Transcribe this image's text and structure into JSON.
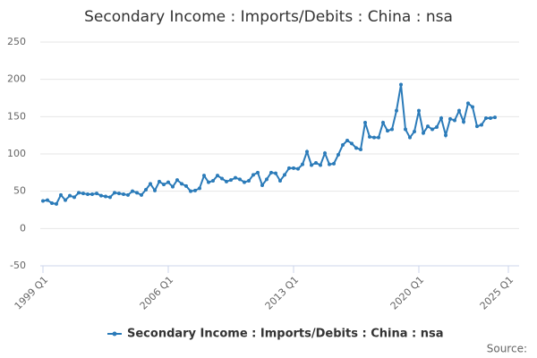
{
  "chart_data": {
    "type": "line",
    "title": "Secondary Income : Imports/Debits : China : nsa",
    "source": "Source:",
    "x": [
      1999,
      1999.25,
      1999.5,
      1999.75,
      2000,
      2000.25,
      2000.5,
      2000.75,
      2001,
      2001.25,
      2001.5,
      2001.75,
      2002,
      2002.25,
      2002.5,
      2002.75,
      2003,
      2003.25,
      2003.5,
      2003.75,
      2004,
      2004.25,
      2004.5,
      2004.75,
      2005,
      2005.25,
      2005.5,
      2005.75,
      2006,
      2006.25,
      2006.5,
      2006.75,
      2007,
      2007.25,
      2007.5,
      2007.75,
      2008,
      2008.25,
      2008.5,
      2008.75,
      2009,
      2009.25,
      2009.5,
      2009.75,
      2010,
      2010.25,
      2010.5,
      2010.75,
      2011,
      2011.25,
      2011.5,
      2011.75,
      2012,
      2012.25,
      2012.5,
      2012.75,
      2013,
      2013.25,
      2013.5,
      2013.75,
      2014,
      2014.25,
      2014.5,
      2014.75,
      2015,
      2015.25,
      2015.5,
      2015.75,
      2016,
      2016.25,
      2016.5,
      2016.75,
      2017,
      2017.25,
      2017.5,
      2017.75,
      2018,
      2018.25,
      2018.5,
      2018.75,
      2019,
      2019.25,
      2019.5,
      2019.75,
      2020,
      2020.25,
      2020.5,
      2020.75,
      2021,
      2021.25,
      2021.5,
      2021.75,
      2022,
      2022.25,
      2022.5,
      2022.75,
      2023,
      2023.25,
      2023.5,
      2023.75,
      2024,
      2024.25
    ],
    "series": [
      {
        "name": "Secondary Income : Imports/Debits : China : nsa",
        "color": "#2b7bb9",
        "values": [
          37,
          38,
          34,
          33,
          45,
          38,
          44,
          42,
          48,
          47,
          46,
          46,
          47,
          44,
          43,
          42,
          48,
          47,
          46,
          45,
          50,
          48,
          45,
          52,
          60,
          51,
          63,
          59,
          62,
          56,
          65,
          60,
          57,
          50,
          51,
          54,
          71,
          62,
          64,
          71,
          67,
          63,
          65,
          68,
          66,
          62,
          64,
          72,
          75,
          58,
          66,
          75,
          74,
          64,
          72,
          81,
          81,
          80,
          86,
          103,
          85,
          88,
          85,
          101,
          86,
          87,
          99,
          112,
          118,
          114,
          108,
          106,
          142,
          123,
          122,
          122,
          142,
          131,
          133,
          158,
          193,
          133,
          122,
          130,
          158,
          128,
          137,
          133,
          136,
          148,
          125,
          147,
          145,
          158,
          143,
          168,
          163,
          137,
          139,
          148,
          148,
          149
        ]
      }
    ],
    "xlim": [
      1998.85,
      2025.6
    ],
    "xticks": [
      {
        "value": 1999,
        "label": "1999 Q1"
      },
      {
        "value": 2006,
        "label": "2006 Q1"
      },
      {
        "value": 2013,
        "label": "2013 Q1"
      },
      {
        "value": 2020,
        "label": "2020 Q1"
      },
      {
        "value": 2025,
        "label": "2025 Q1"
      }
    ],
    "ylim": [
      -50,
      250
    ],
    "yticks": [
      -50,
      0,
      50,
      100,
      150,
      200,
      250
    ],
    "grid": true,
    "legend": "bottom"
  }
}
